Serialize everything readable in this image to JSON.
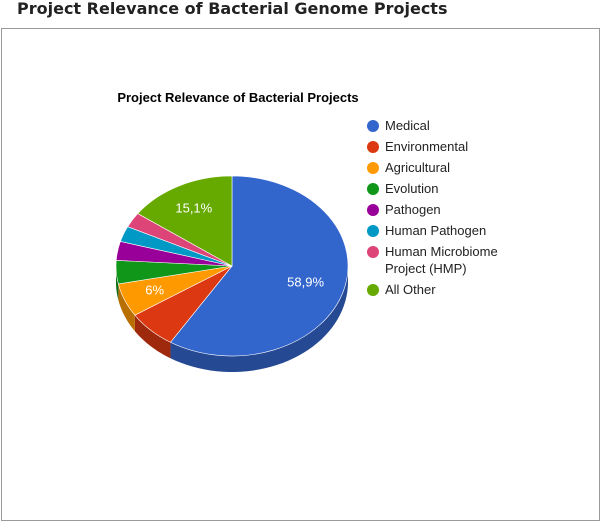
{
  "page": {
    "heading": "Project Relevance of Bacterial Genome Projects"
  },
  "chart_data": {
    "type": "pie",
    "title": "Project Relevance of Bacterial Projects",
    "legend_position": "right",
    "three_d": true,
    "slices": [
      {
        "name": "Medical",
        "value": 58.9,
        "label": "58,9%",
        "color": "#3366cc"
      },
      {
        "name": "Environmental",
        "value": 6.9,
        "label": "",
        "color": "#dc3912"
      },
      {
        "name": "Agricultural",
        "value": 6.0,
        "label": "6%",
        "color": "#ff9900"
      },
      {
        "name": "Evolution",
        "value": 4.2,
        "label": "",
        "color": "#109618"
      },
      {
        "name": "Pathogen",
        "value": 3.4,
        "label": "",
        "color": "#990099"
      },
      {
        "name": "Human Pathogen",
        "value": 2.8,
        "label": "",
        "color": "#0099c6"
      },
      {
        "name": "Human Microbiome Project (HMP)",
        "value": 2.7,
        "label": "",
        "color": "#dd4477"
      },
      {
        "name": "All Other",
        "value": 15.1,
        "label": "15,1%",
        "color": "#66aa00"
      }
    ]
  }
}
